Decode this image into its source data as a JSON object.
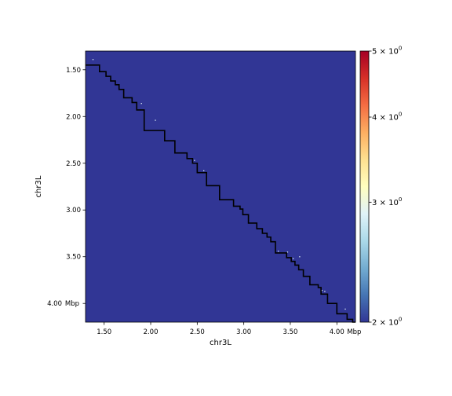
{
  "chart_data": {
    "type": "heatmap",
    "title": "",
    "xlabel": "chr3L",
    "ylabel": "chr3L",
    "x_unit": "Mbp",
    "y_unit": "Mbp",
    "xlim": [
      1.3,
      4.2
    ],
    "ylim": [
      1.3,
      4.2
    ],
    "x_ticks": [
      {
        "value": 1.5,
        "label": "1.50"
      },
      {
        "value": 2.0,
        "label": "2.00"
      },
      {
        "value": 2.5,
        "label": "2.50"
      },
      {
        "value": 3.0,
        "label": "3.00"
      },
      {
        "value": 3.5,
        "label": "3.50"
      },
      {
        "value": 4.0,
        "label": "4.00"
      }
    ],
    "y_ticks": [
      {
        "value": 1.5,
        "label": "1.50"
      },
      {
        "value": 2.0,
        "label": "2.00"
      },
      {
        "value": 2.5,
        "label": "2.50"
      },
      {
        "value": 3.0,
        "label": "3.00"
      },
      {
        "value": 3.5,
        "label": "3.50"
      },
      {
        "value": 4.0,
        "label": "4.00"
      }
    ],
    "background_color": "#313695",
    "colorbar": {
      "scale": "log",
      "range": [
        2,
        5
      ],
      "ticks": [
        {
          "value": 2,
          "label": "2 × 10^0"
        },
        {
          "value": 3,
          "label": "3 × 10^0"
        },
        {
          "value": 4,
          "label": "4 × 10^0"
        },
        {
          "value": 5,
          "label": "5 × 10^0"
        }
      ],
      "colors": [
        "#313695",
        "#4575b4",
        "#74add1",
        "#abd9e9",
        "#e0f3f8",
        "#ffffbf",
        "#fee090",
        "#fdae61",
        "#f46d43",
        "#d73027",
        "#a50026"
      ]
    },
    "tad_boundaries": [
      1.3,
      1.45,
      1.52,
      1.57,
      1.62,
      1.66,
      1.71,
      1.8,
      1.85,
      1.93,
      2.15,
      2.26,
      2.39,
      2.45,
      2.5,
      2.6,
      2.74,
      2.89,
      2.96,
      2.99,
      3.05,
      3.14,
      3.2,
      3.25,
      3.29,
      3.34,
      3.46,
      3.51,
      3.55,
      3.59,
      3.64,
      3.71,
      3.8,
      3.83,
      3.9,
      4.0,
      4.11,
      4.17,
      4.2
    ],
    "boundary_color": "#000000",
    "speckles": [
      {
        "x": 1.38,
        "y": 1.39
      },
      {
        "x": 1.9,
        "y": 1.86
      },
      {
        "x": 2.05,
        "y": 2.04
      },
      {
        "x": 2.47,
        "y": 2.47
      },
      {
        "x": 2.57,
        "y": 2.58
      },
      {
        "x": 3.37,
        "y": 3.44
      },
      {
        "x": 3.47,
        "y": 3.45
      },
      {
        "x": 3.53,
        "y": 3.52
      },
      {
        "x": 3.6,
        "y": 3.5
      },
      {
        "x": 3.84,
        "y": 3.86
      },
      {
        "x": 3.87,
        "y": 3.87
      },
      {
        "x": 4.09,
        "y": 4.06
      }
    ]
  }
}
